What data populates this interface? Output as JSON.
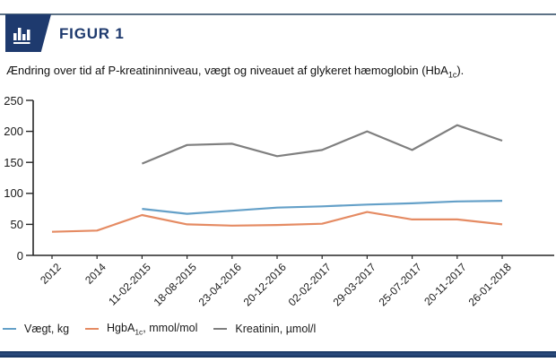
{
  "header": {
    "figure_label": "FIGUR 1"
  },
  "subtitle": {
    "pre": "Ændring over tid af P-kreatininniveau, vægt og niveauet af glykeret hæmoglobin (HbA",
    "sub": "1c",
    "post": ")."
  },
  "colors": {
    "navy": "#1e3a6e",
    "header_rule": "#5d7286",
    "axis": "#262626",
    "weight_line": "#64a0c8",
    "hba1c_line": "#e58b63",
    "creatinine_line": "#7f7f7f"
  },
  "legend": {
    "items": [
      {
        "label": "Vægt, kg"
      },
      {
        "prefix": "HgbA",
        "sub": "1c",
        "suffix": ", mmol/mol"
      },
      {
        "label": "Kreatinin, µmol/l"
      }
    ]
  },
  "chart_data": {
    "type": "line",
    "categories": [
      "2012",
      "2014",
      "11-02-2015",
      "18-08-2015",
      "23-04-2016",
      "20-12-2016",
      "02-02-2017",
      "29-03-2017",
      "25-07-2017",
      "20-11-2017",
      "26-01-2018"
    ],
    "series": [
      {
        "name": "Vægt, kg",
        "color": "#64a0c8",
        "values": [
          null,
          null,
          75,
          67,
          72,
          77,
          79,
          82,
          84,
          87,
          88
        ]
      },
      {
        "name": "HgbA1c, mmol/mol",
        "color": "#e58b63",
        "values": [
          38,
          40,
          65,
          50,
          48,
          49,
          51,
          70,
          58,
          58,
          50
        ]
      },
      {
        "name": "Kreatinin, µmol/l",
        "color": "#7f7f7f",
        "values": [
          null,
          null,
          148,
          178,
          180,
          160,
          170,
          200,
          170,
          210,
          185
        ]
      }
    ],
    "title": "Ændring over tid af P-kreatininniveau, vægt og niveauet af glykeret hæmoglobin (HbA1c).",
    "xlabel": "",
    "ylabel": "",
    "ylim": [
      0,
      250
    ],
    "y_ticks": [
      0,
      50,
      100,
      150,
      200,
      250
    ],
    "grid": false,
    "legend_position": "bottom"
  }
}
